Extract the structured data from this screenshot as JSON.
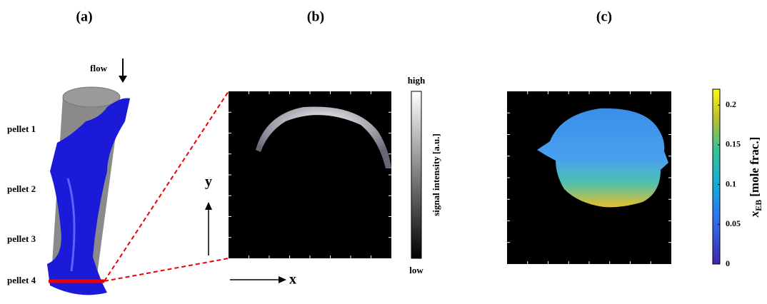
{
  "panels": {
    "a": {
      "label": "(a)",
      "flow": "flow",
      "pellets": [
        "pellet 1",
        "pellet 2",
        "pellet 3",
        "pellet 4"
      ]
    },
    "b": {
      "label": "(b)",
      "axis_y": "y",
      "axis_x": "x",
      "colorbar": {
        "high": "high",
        "low": "low",
        "title": "signal intensity [a.u.]"
      }
    },
    "c": {
      "label": "(c)",
      "colorbar": {
        "lim": [
          0,
          0.22
        ],
        "ticks": [
          0,
          0.05,
          0.1,
          0.15,
          0.2
        ],
        "title_main": "x",
        "title_sub": "EB",
        "title_unit": "[mole frac.]"
      }
    }
  }
}
